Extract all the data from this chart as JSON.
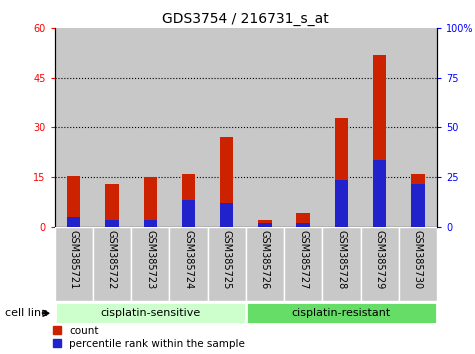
{
  "title": "GDS3754 / 216731_s_at",
  "samples": [
    "GSM385721",
    "GSM385722",
    "GSM385723",
    "GSM385724",
    "GSM385725",
    "GSM385726",
    "GSM385727",
    "GSM385728",
    "GSM385729",
    "GSM385730"
  ],
  "count_values": [
    15.2,
    13.0,
    15.0,
    16.0,
    27.0,
    2.0,
    4.0,
    33.0,
    52.0,
    16.0
  ],
  "percentile_values": [
    3.0,
    2.0,
    2.0,
    8.0,
    7.0,
    1.0,
    1.0,
    14.0,
    20.0,
    13.0
  ],
  "count_color": "#cc2200",
  "percentile_color": "#2222cc",
  "ylim_left": [
    0,
    60
  ],
  "ylim_right": [
    0,
    100
  ],
  "yticks_left": [
    0,
    15,
    30,
    45,
    60
  ],
  "yticks_right": [
    0,
    25,
    50,
    75,
    100
  ],
  "ytick_labels_right": [
    "0",
    "25",
    "50",
    "75",
    "100%"
  ],
  "groups": [
    {
      "label": "cisplatin-sensitive",
      "indices": [
        0,
        1,
        2,
        3,
        4
      ],
      "color": "#ccffcc"
    },
    {
      "label": "cisplatin-resistant",
      "indices": [
        5,
        6,
        7,
        8,
        9
      ],
      "color": "#66dd66"
    }
  ],
  "group_label": "cell line",
  "legend_count": "count",
  "legend_percentile": "percentile rank within the sample",
  "bar_width": 0.35,
  "background_color": "#ffffff",
  "plot_bg_color": "#ffffff",
  "tick_bg_color": "#c8c8c8",
  "grid_color": "#000000",
  "title_fontsize": 10,
  "axis_fontsize": 8,
  "tick_fontsize": 7,
  "label_fontsize": 7
}
